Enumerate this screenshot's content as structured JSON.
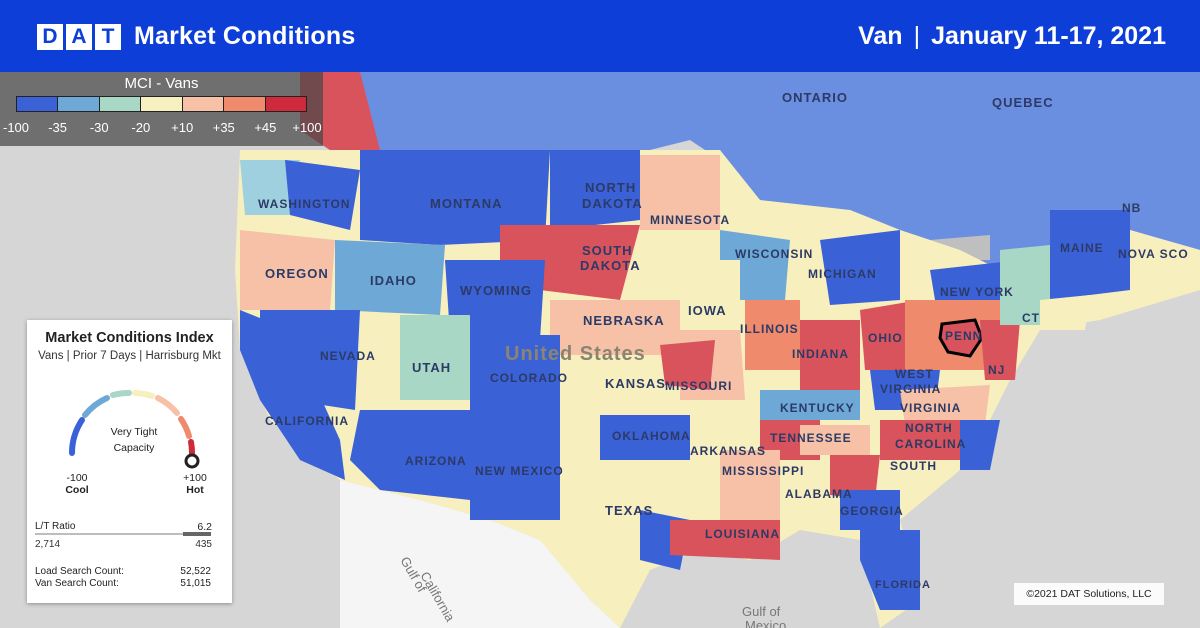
{
  "header": {
    "logo_letters": [
      "D",
      "A",
      "T"
    ],
    "title": "Market Conditions",
    "equipment": "Van",
    "separator": "|",
    "date_range": "January 11-17, 2021"
  },
  "legend": {
    "title": "MCI - Vans",
    "colors": [
      "#3a62d6",
      "#6ea8d6",
      "#a9d7c6",
      "#f7f0c0",
      "#f6c1a6",
      "#ef8a6c",
      "#cf2a3c"
    ],
    "ticks": [
      "-100",
      "-35",
      "-30",
      "-20",
      "+10",
      "+35",
      "+45",
      "+100"
    ]
  },
  "map_labels": {
    "regions": [
      "ONTARIO",
      "QUEBEC",
      "NORTH",
      "DAKOTA",
      "SOUTH",
      "DAKOTA",
      "MONTANA",
      "WASHINGTON",
      "IDAHO",
      "OREGON",
      "WYOMING",
      "NEBRASKA",
      "MINNESOTA",
      "WISCONSIN",
      "IOWA",
      "MICHIGAN",
      "ILLINOIS",
      "INDIANA",
      "OHIO",
      "NEVADA",
      "UTAH",
      "COLORADO",
      "KANSAS",
      "MISSOURI",
      "CALIFORNIA",
      "ARIZONA",
      "NEW MEXICO",
      "OKLAHOMA",
      "TEXAS",
      "ARKANSAS",
      "TENNESSEE",
      "KENTUCKY",
      "MISSISSIPPI",
      "ALABAMA",
      "LOUISIANA",
      "GEORGIA",
      "FLORIDA",
      "SOUTH",
      "NORTH",
      "CAROLINA",
      "VIRGINIA",
      "WEST",
      "VIRGINIA",
      "NEW YORK",
      "NJ",
      "PENN",
      "MAINE",
      "NB",
      "NOVA SCO",
      "CT"
    ],
    "country": "United States",
    "waters": [
      "Gulf of",
      "California",
      "Gulf of",
      "Mexico"
    ]
  },
  "index_card": {
    "title": "Market Conditions Index",
    "subtitle": "Vans | Prior 7 Days | Harrisburg Mkt",
    "status_line1": "Very Tight",
    "status_line2": "Capacity",
    "gauge_value": 100,
    "cool_value": "-100",
    "cool_label": "Cool",
    "hot_value": "+100",
    "hot_label": "Hot",
    "ratio_label": "L/T Ratio",
    "ratio_value": "6.2",
    "load_posts": "2,714",
    "truck_posts": "435",
    "load_search_label": "Load Search Count:",
    "load_search_value": "52,522",
    "van_search_label": "Van Search Count:",
    "van_search_value": "51,015"
  },
  "copyright": "©2021 DAT Solutions, LLC"
}
